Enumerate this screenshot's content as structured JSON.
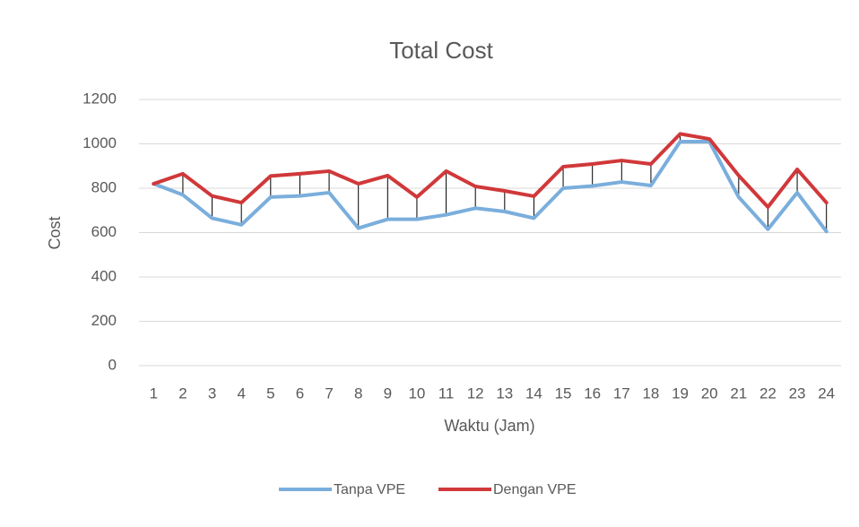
{
  "chart_data": {
    "type": "line",
    "title": "Total Cost",
    "x_label": "Waktu (Jam)",
    "y_label": "Cost",
    "categories": [
      "1",
      "2",
      "3",
      "4",
      "5",
      "6",
      "7",
      "8",
      "9",
      "10",
      "11",
      "12",
      "13",
      "14",
      "15",
      "16",
      "17",
      "18",
      "19",
      "20",
      "21",
      "22",
      "23",
      "24"
    ],
    "series": [
      {
        "name": "Tanpa VPE",
        "color": "#7aaedc",
        "values": [
          820,
          770,
          665,
          635,
          760,
          765,
          780,
          620,
          660,
          660,
          680,
          710,
          695,
          665,
          800,
          810,
          828,
          812,
          1010,
          1010,
          760,
          615,
          780,
          605
        ]
      },
      {
        "name": "Dengan VPE",
        "color": "#d0383a",
        "values": [
          820,
          865,
          765,
          735,
          855,
          865,
          877,
          820,
          857,
          760,
          877,
          808,
          788,
          764,
          897,
          909,
          925,
          909,
          1045,
          1022,
          857,
          715,
          885,
          735
        ]
      }
    ],
    "ylim": [
      0,
      1200
    ],
    "yticks": [
      0,
      200,
      400,
      600,
      800,
      1000,
      1200
    ],
    "grid": true,
    "high_low_lines": true,
    "legend": "bottom"
  }
}
